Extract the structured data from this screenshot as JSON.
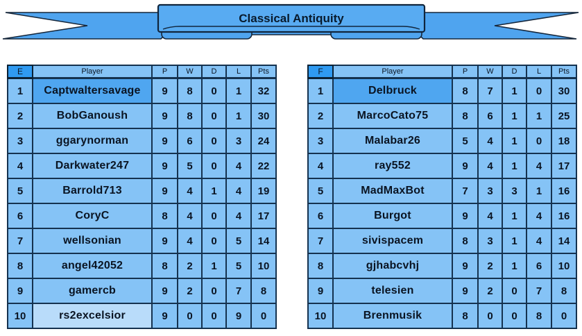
{
  "banner": {
    "title": "Classical Antiquity"
  },
  "columns": {
    "player": "Player",
    "p": "P",
    "w": "W",
    "d": "D",
    "l": "L",
    "pts": "Pts"
  },
  "tables": [
    {
      "group": "E",
      "rows": [
        {
          "rank": "1",
          "player": "Captwaltersavage",
          "p": "9",
          "w": "8",
          "d": "0",
          "l": "1",
          "pts": "32",
          "player_style": "top"
        },
        {
          "rank": "2",
          "player": "BobGanoush",
          "p": "9",
          "w": "8",
          "d": "0",
          "l": "1",
          "pts": "30",
          "player_style": ""
        },
        {
          "rank": "3",
          "player": "ggarynorman",
          "p": "9",
          "w": "6",
          "d": "0",
          "l": "3",
          "pts": "24",
          "player_style": ""
        },
        {
          "rank": "4",
          "player": "Darkwater247",
          "p": "9",
          "w": "5",
          "d": "0",
          "l": "4",
          "pts": "22",
          "player_style": ""
        },
        {
          "rank": "5",
          "player": "Barrold713",
          "p": "9",
          "w": "4",
          "d": "1",
          "l": "4",
          "pts": "19",
          "player_style": ""
        },
        {
          "rank": "6",
          "player": "CoryC",
          "p": "8",
          "w": "4",
          "d": "0",
          "l": "4",
          "pts": "17",
          "player_style": ""
        },
        {
          "rank": "7",
          "player": "wellsonian",
          "p": "9",
          "w": "4",
          "d": "0",
          "l": "5",
          "pts": "14",
          "player_style": ""
        },
        {
          "rank": "8",
          "player": "angel42052",
          "p": "8",
          "w": "2",
          "d": "1",
          "l": "5",
          "pts": "10",
          "player_style": ""
        },
        {
          "rank": "9",
          "player": "gamercb",
          "p": "9",
          "w": "2",
          "d": "0",
          "l": "7",
          "pts": "8",
          "player_style": ""
        },
        {
          "rank": "10",
          "player": "rs2excelsior",
          "p": "9",
          "w": "0",
          "d": "0",
          "l": "9",
          "pts": "0",
          "player_style": "bottom"
        }
      ]
    },
    {
      "group": "F",
      "rows": [
        {
          "rank": "1",
          "player": "Delbruck",
          "p": "8",
          "w": "7",
          "d": "1",
          "l": "0",
          "pts": "30",
          "player_style": "top"
        },
        {
          "rank": "2",
          "player": "MarcoCato75",
          "p": "8",
          "w": "6",
          "d": "1",
          "l": "1",
          "pts": "25",
          "player_style": ""
        },
        {
          "rank": "3",
          "player": "Malabar26",
          "p": "5",
          "w": "4",
          "d": "1",
          "l": "0",
          "pts": "18",
          "player_style": ""
        },
        {
          "rank": "4",
          "player": "ray552",
          "p": "9",
          "w": "4",
          "d": "1",
          "l": "4",
          "pts": "17",
          "player_style": ""
        },
        {
          "rank": "5",
          "player": "MadMaxBot",
          "p": "7",
          "w": "3",
          "d": "3",
          "l": "1",
          "pts": "16",
          "player_style": ""
        },
        {
          "rank": "6",
          "player": "Burgot",
          "p": "9",
          "w": "4",
          "d": "1",
          "l": "4",
          "pts": "16",
          "player_style": ""
        },
        {
          "rank": "7",
          "player": "sivispacem",
          "p": "8",
          "w": "3",
          "d": "1",
          "l": "4",
          "pts": "14",
          "player_style": ""
        },
        {
          "rank": "8",
          "player": "gjhabcvhj",
          "p": "9",
          "w": "2",
          "d": "1",
          "l": "6",
          "pts": "10",
          "player_style": ""
        },
        {
          "rank": "9",
          "player": "telesien",
          "p": "9",
          "w": "2",
          "d": "0",
          "l": "7",
          "pts": "8",
          "player_style": ""
        },
        {
          "rank": "10",
          "player": "Brenmusik",
          "p": "8",
          "w": "0",
          "d": "0",
          "l": "8",
          "pts": "0",
          "player_style": ""
        }
      ]
    }
  ],
  "colors": {
    "banner_blue": "#4fa4ef",
    "group_header_bg": "#2f9af1",
    "cell_bg": "#85c3f6",
    "first_place_player_bg": "#4fa6f0",
    "last_place_player_bg": "#b9dcfa",
    "border": "#15324f",
    "text": "#0a1422",
    "background": "#ffffff"
  },
  "chart_data": [
    {
      "type": "table",
      "title": "Classical Antiquity - Group E",
      "columns": [
        "E",
        "Player",
        "P",
        "W",
        "D",
        "L",
        "Pts"
      ],
      "rows": [
        [
          1,
          "Captwaltersavage",
          9,
          8,
          0,
          1,
          32
        ],
        [
          2,
          "BobGanoush",
          9,
          8,
          0,
          1,
          30
        ],
        [
          3,
          "ggarynorman",
          9,
          6,
          0,
          3,
          24
        ],
        [
          4,
          "Darkwater247",
          9,
          5,
          0,
          4,
          22
        ],
        [
          5,
          "Barrold713",
          9,
          4,
          1,
          4,
          19
        ],
        [
          6,
          "CoryC",
          8,
          4,
          0,
          4,
          17
        ],
        [
          7,
          "wellsonian",
          9,
          4,
          0,
          5,
          14
        ],
        [
          8,
          "angel42052",
          8,
          2,
          1,
          5,
          10
        ],
        [
          9,
          "gamercb",
          9,
          2,
          0,
          7,
          8
        ],
        [
          10,
          "rs2excelsior",
          9,
          0,
          0,
          9,
          0
        ]
      ]
    },
    {
      "type": "table",
      "title": "Classical Antiquity - Group F",
      "columns": [
        "F",
        "Player",
        "P",
        "W",
        "D",
        "L",
        "Pts"
      ],
      "rows": [
        [
          1,
          "Delbruck",
          8,
          7,
          1,
          0,
          30
        ],
        [
          2,
          "MarcoCato75",
          8,
          6,
          1,
          1,
          25
        ],
        [
          3,
          "Malabar26",
          5,
          4,
          1,
          0,
          18
        ],
        [
          4,
          "ray552",
          9,
          4,
          1,
          4,
          17
        ],
        [
          5,
          "MadMaxBot",
          7,
          3,
          3,
          1,
          16
        ],
        [
          6,
          "Burgot",
          9,
          4,
          1,
          4,
          16
        ],
        [
          7,
          "sivispacem",
          8,
          3,
          1,
          4,
          14
        ],
        [
          8,
          "gjhabcvhj",
          9,
          2,
          1,
          6,
          10
        ],
        [
          9,
          "telesien",
          9,
          2,
          0,
          7,
          8
        ],
        [
          10,
          "Brenmusik",
          8,
          0,
          0,
          8,
          0
        ]
      ]
    }
  ]
}
